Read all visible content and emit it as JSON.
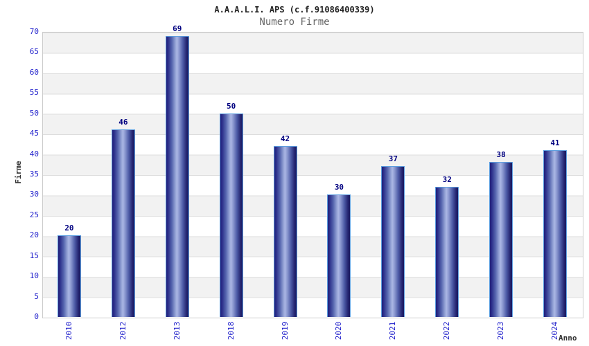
{
  "header": {
    "title": "A.A.A.L.I. APS (c.f.91086400339)",
    "subtitle": "Numero Firme"
  },
  "chart_data": {
    "type": "bar",
    "title": "A.A.A.L.I. APS (c.f.91086400339)",
    "subtitle": "Numero Firme",
    "categories": [
      "2010",
      "2012",
      "2013",
      "2018",
      "2019",
      "2020",
      "2021",
      "2022",
      "2023",
      "2024"
    ],
    "values": [
      20,
      46,
      69,
      50,
      42,
      30,
      37,
      32,
      38,
      41
    ],
    "xlabel": "Anno",
    "ylabel": "Firme",
    "ylim": [
      0,
      70
    ],
    "ytick_step": 5,
    "legend": "none",
    "grid": "horizontal-bands-every-5",
    "colors": {
      "tick_label": "#2222cc",
      "value_label": "#000080",
      "bar_dark": "#1d1d6e",
      "bar_highlight": "#aab6e4",
      "bar_border": "#5e9fe0",
      "band_gray": "#f2f2f2",
      "band_white": "#ffffff",
      "plot_border": "#cccccc",
      "title_color": "#222222",
      "subtitle_color": "#666666",
      "axis_title_color": "#333333"
    }
  }
}
